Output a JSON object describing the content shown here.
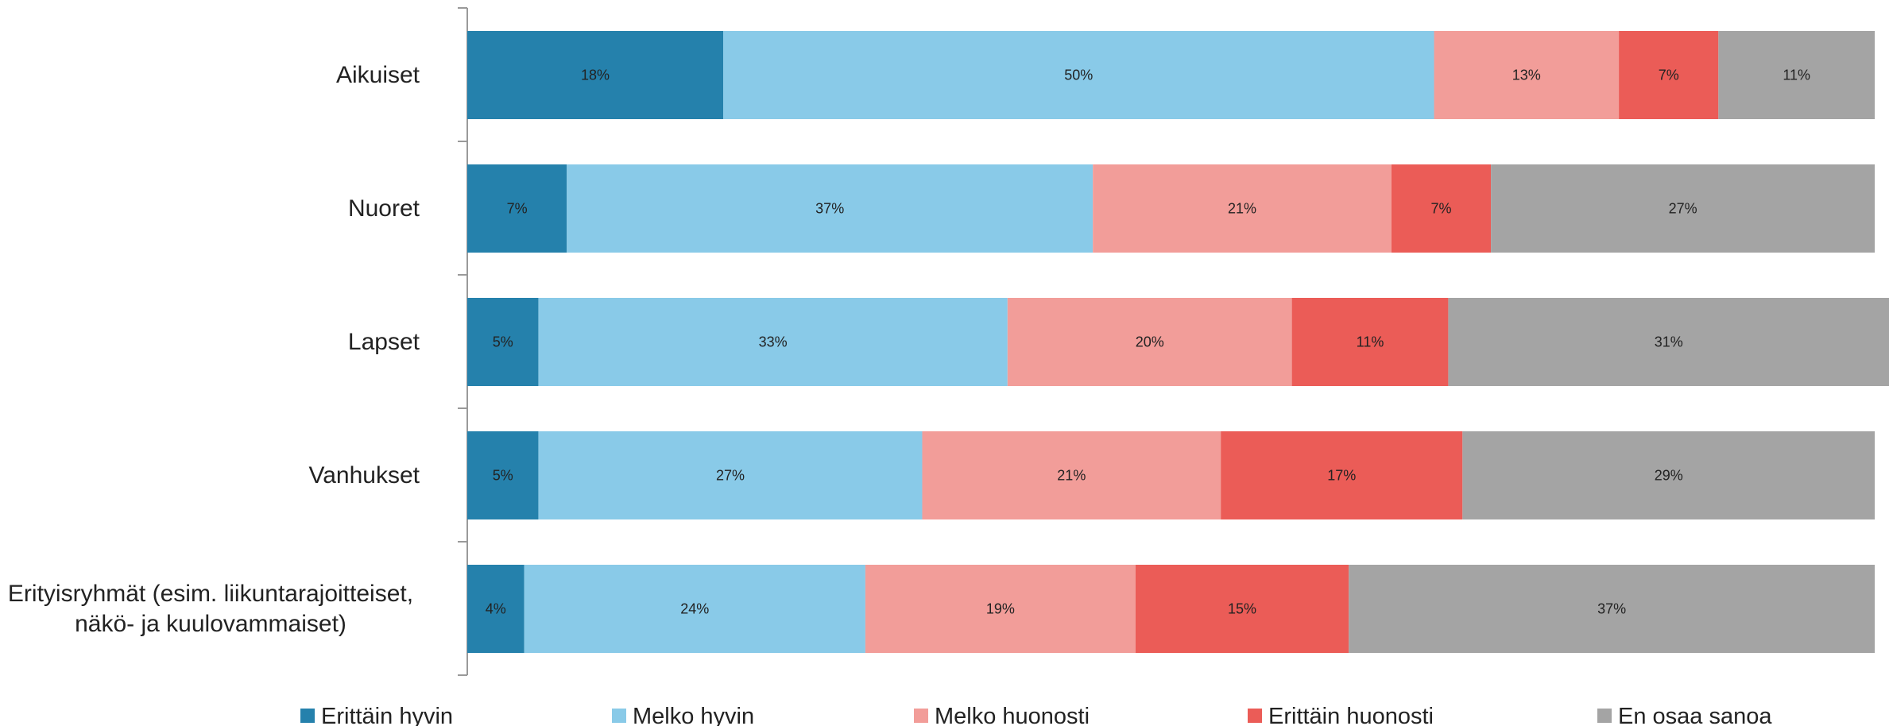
{
  "chart_data": {
    "type": "bar",
    "orientation": "horizontal",
    "stacked": true,
    "stack_total_percent": 100,
    "categories": [
      "Aikuiset",
      "Nuoret",
      "Lapset",
      "Vanhukset",
      "Erityisryhmät (esim. liikuntarajoitteiset, näkö- ja kuulovammaiset)"
    ],
    "category_lines": [
      [
        "Aikuiset"
      ],
      [
        "Nuoret"
      ],
      [
        "Lapset"
      ],
      [
        "Vanhukset"
      ],
      [
        "Erityisryhmät (esim. liikuntarajoitteiset,",
        "näkö- ja kuulovammaiset)"
      ]
    ],
    "series": [
      {
        "name": "Erittäin hyvin",
        "color": "#2581AC",
        "values": [
          18,
          7,
          5,
          5,
          4
        ]
      },
      {
        "name": "Melko hyvin",
        "color": "#89CAE8",
        "values": [
          50,
          37,
          33,
          27,
          24
        ]
      },
      {
        "name": "Melko huonosti",
        "color": "#F29D99",
        "values": [
          13,
          21,
          20,
          21,
          19
        ]
      },
      {
        "name": "Erittäin huonosti",
        "color": "#EB5C57",
        "values": [
          7,
          7,
          11,
          17,
          15
        ]
      },
      {
        "name": "En osaa sanoa",
        "color": "#A4A4A4",
        "values": [
          11,
          27,
          31,
          29,
          37
        ]
      }
    ],
    "value_suffix": "%",
    "grid": false,
    "legend_position": "bottom"
  }
}
